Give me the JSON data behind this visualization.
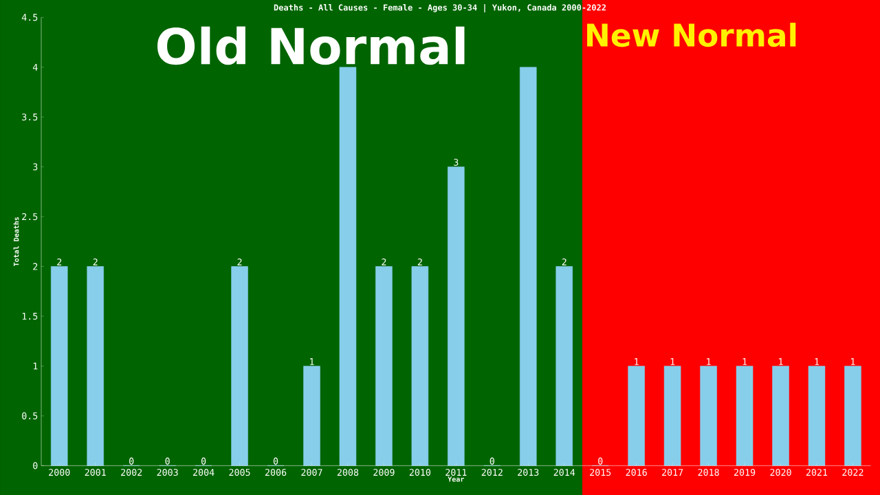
{
  "chart_data": {
    "type": "bar",
    "title": "Deaths - All Causes - Female - Ages 30-34 | Yukon, Canada 2000-2022",
    "xlabel": "Year",
    "ylabel": "Total Deaths",
    "categories": [
      "2000",
      "2001",
      "2002",
      "2003",
      "2004",
      "2005",
      "2006",
      "2007",
      "2008",
      "2009",
      "2010",
      "2011",
      "2012",
      "2013",
      "2014",
      "2015",
      "2016",
      "2017",
      "2018",
      "2019",
      "2020",
      "2021",
      "2022"
    ],
    "values": [
      2,
      2,
      0,
      0,
      0,
      2,
      0,
      1,
      4,
      2,
      2,
      3,
      0,
      4,
      2,
      0,
      1,
      1,
      1,
      1,
      1,
      1,
      1
    ],
    "value_labels": [
      "2",
      "2",
      "0",
      "0",
      "0",
      "2",
      "0",
      "1",
      null,
      "2",
      "2",
      "3",
      "0",
      null,
      "2",
      "0",
      "1",
      "1",
      "1",
      "1",
      "1",
      "1",
      "1"
    ],
    "color": "#87ceeb",
    "ylim": [
      0,
      4.5
    ],
    "yticks": [
      0,
      0.5,
      1,
      1.5,
      2,
      2.5,
      3,
      3.5,
      4,
      4.5
    ],
    "bands": [
      {
        "axis": "x",
        "from": "2000",
        "to": "2014",
        "label": "Old Normal",
        "color": "#006400"
      },
      {
        "axis": "x",
        "from": "2015",
        "to": "2022",
        "label": "New Normal",
        "color": "#ff0000"
      }
    ]
  }
}
